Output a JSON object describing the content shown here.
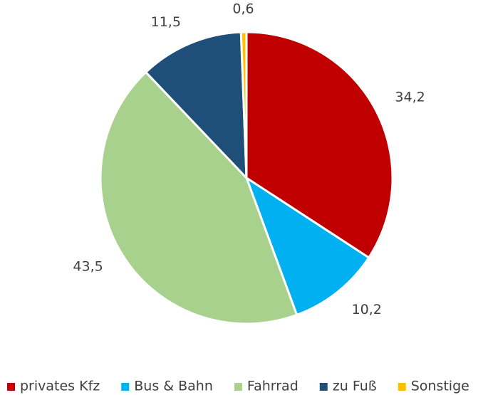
{
  "chart_data": {
    "type": "pie",
    "categories": [
      "privates Kfz",
      "Bus & Bahn",
      "Fahrrad",
      "zu Fuß",
      "Sonstige"
    ],
    "values": [
      34.2,
      10.2,
      43.5,
      11.5,
      0.6
    ],
    "value_labels": [
      "34,2",
      "10,2",
      "43,5",
      "11,5",
      "0,6"
    ],
    "colors": [
      "#c00000",
      "#00b0f0",
      "#a9d18e",
      "#1f4e79",
      "#ffc000"
    ],
    "legend": "bottom"
  }
}
